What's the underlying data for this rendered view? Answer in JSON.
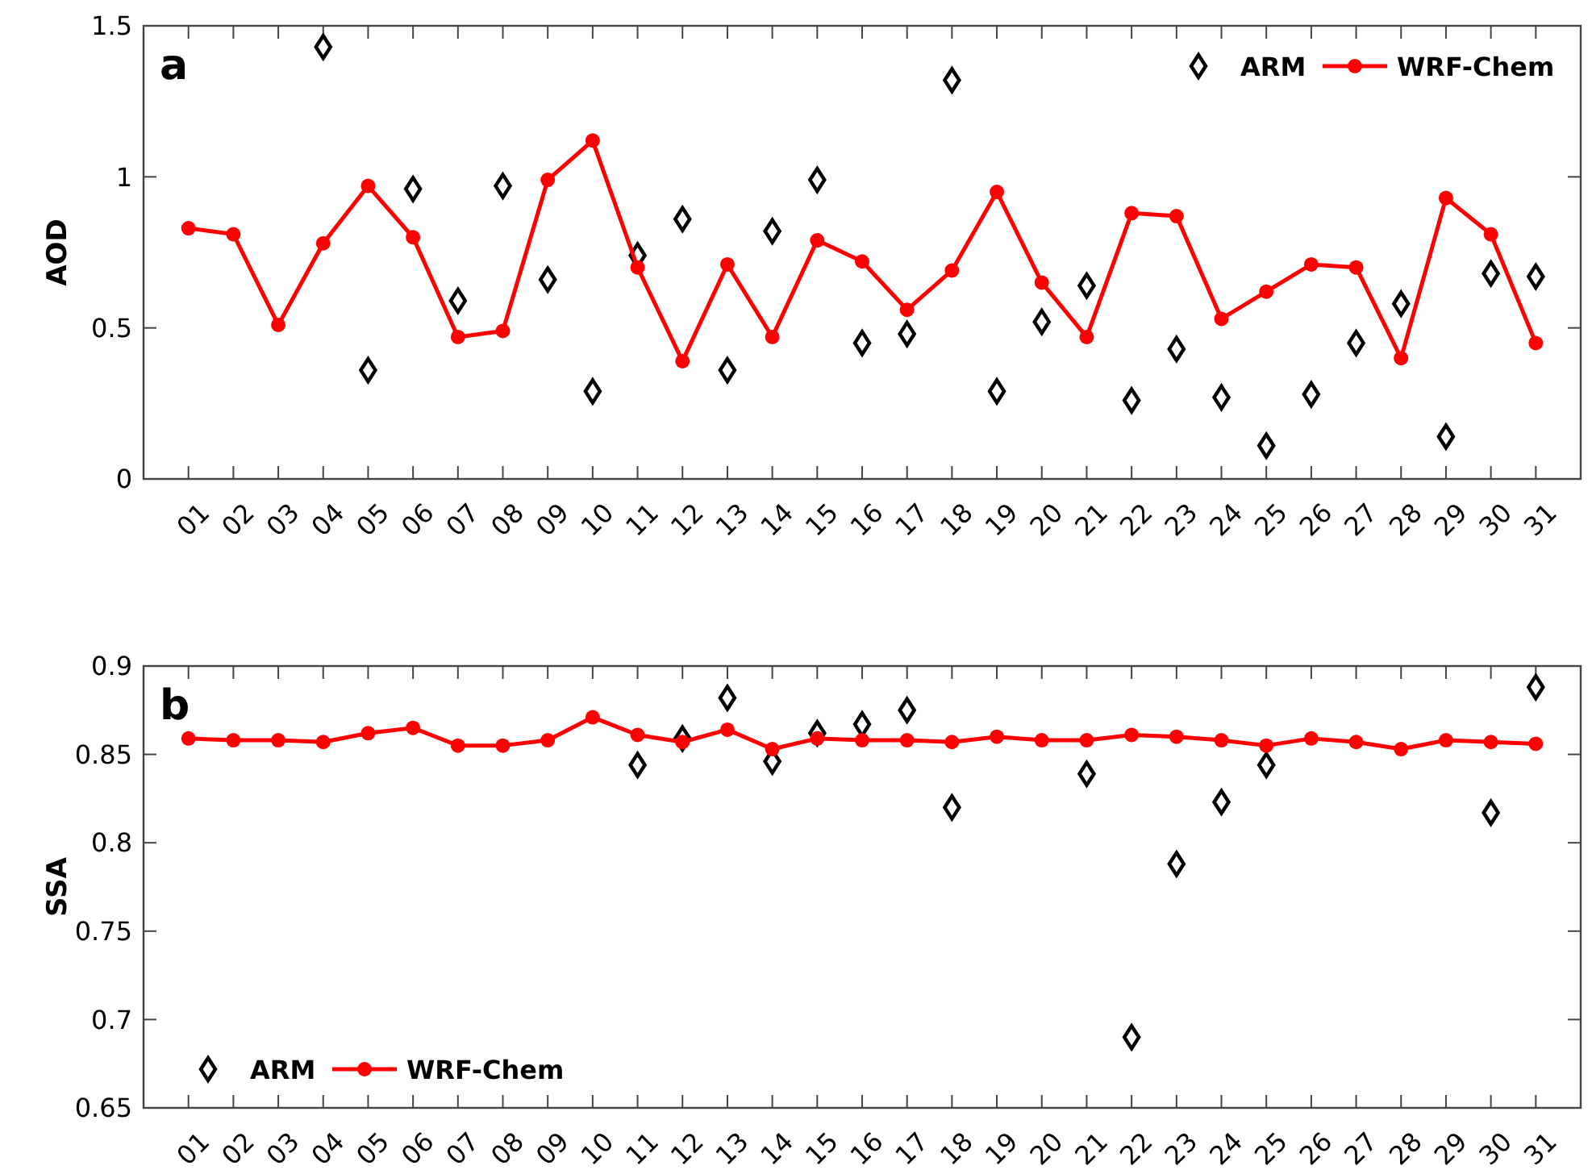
{
  "chart_data": [
    {
      "type": "line",
      "ylabel": "AOD",
      "annotations": [
        "a"
      ],
      "legend": "top right",
      "grid": false,
      "categories": [
        "01",
        "02",
        "03",
        "04",
        "05",
        "06",
        "07",
        "08",
        "09",
        "10",
        "11",
        "12",
        "13",
        "14",
        "15",
        "16",
        "17",
        "18",
        "19",
        "20",
        "21",
        "22",
        "23",
        "24",
        "25",
        "26",
        "27",
        "28",
        "29",
        "30",
        "31"
      ],
      "ylim": [
        0,
        1.5
      ],
      "yticks": [
        0,
        0.5,
        1,
        1.5
      ],
      "series": [
        {
          "name": "ARM",
          "type": "scatter",
          "marker": "diamond",
          "color": "#000000",
          "values": [
            null,
            null,
            null,
            1.43,
            0.36,
            0.96,
            0.59,
            0.97,
            0.66,
            0.29,
            0.74,
            0.86,
            0.36,
            0.82,
            0.99,
            0.45,
            0.48,
            1.32,
            0.29,
            0.52,
            0.64,
            0.26,
            0.43,
            0.27,
            0.11,
            0.28,
            0.45,
            0.58,
            0.14,
            0.68,
            0.67
          ]
        },
        {
          "name": "WRF-Chem",
          "type": "line",
          "marker": "circle",
          "line_style": "solid",
          "color": "#ff0000",
          "values": [
            0.83,
            0.81,
            0.51,
            0.78,
            0.97,
            0.8,
            0.47,
            0.49,
            0.99,
            1.12,
            0.7,
            0.39,
            0.71,
            0.47,
            0.79,
            0.72,
            0.56,
            0.69,
            0.95,
            0.65,
            0.47,
            0.88,
            0.87,
            0.53,
            0.62,
            0.71,
            0.7,
            0.4,
            0.93,
            0.81,
            0.45
          ]
        }
      ]
    },
    {
      "type": "line",
      "ylabel": "SSA",
      "annotations": [
        "b"
      ],
      "legend": "bottom left",
      "grid": false,
      "categories": [
        "01",
        "02",
        "03",
        "04",
        "05",
        "06",
        "07",
        "08",
        "09",
        "10",
        "11",
        "12",
        "13",
        "14",
        "15",
        "16",
        "17",
        "18",
        "19",
        "20",
        "21",
        "22",
        "23",
        "24",
        "25",
        "26",
        "27",
        "28",
        "29",
        "30",
        "31"
      ],
      "ylim": [
        0.65,
        0.9
      ],
      "yticks": [
        0.65,
        0.7,
        0.75,
        0.8,
        0.85,
        0.9
      ],
      "series": [
        {
          "name": "ARM",
          "type": "scatter",
          "marker": "diamond",
          "color": "#000000",
          "values": [
            null,
            null,
            null,
            null,
            null,
            null,
            null,
            null,
            null,
            null,
            0.844,
            0.859,
            0.882,
            0.846,
            0.862,
            0.867,
            0.875,
            0.82,
            null,
            null,
            0.839,
            0.69,
            0.788,
            0.823,
            0.844,
            null,
            null,
            null,
            null,
            0.817,
            0.888
          ]
        },
        {
          "name": "WRF-Chem",
          "type": "line",
          "marker": "circle",
          "line_style": "solid",
          "color": "#ff0000",
          "values": [
            0.859,
            0.858,
            0.858,
            0.857,
            0.862,
            0.865,
            0.855,
            0.855,
            0.858,
            0.871,
            0.861,
            0.857,
            0.864,
            0.853,
            0.859,
            0.858,
            0.858,
            0.857,
            0.86,
            0.858,
            0.858,
            0.861,
            0.86,
            0.858,
            0.855,
            0.859,
            0.857,
            0.853,
            0.858,
            0.857,
            0.856
          ]
        }
      ]
    }
  ]
}
